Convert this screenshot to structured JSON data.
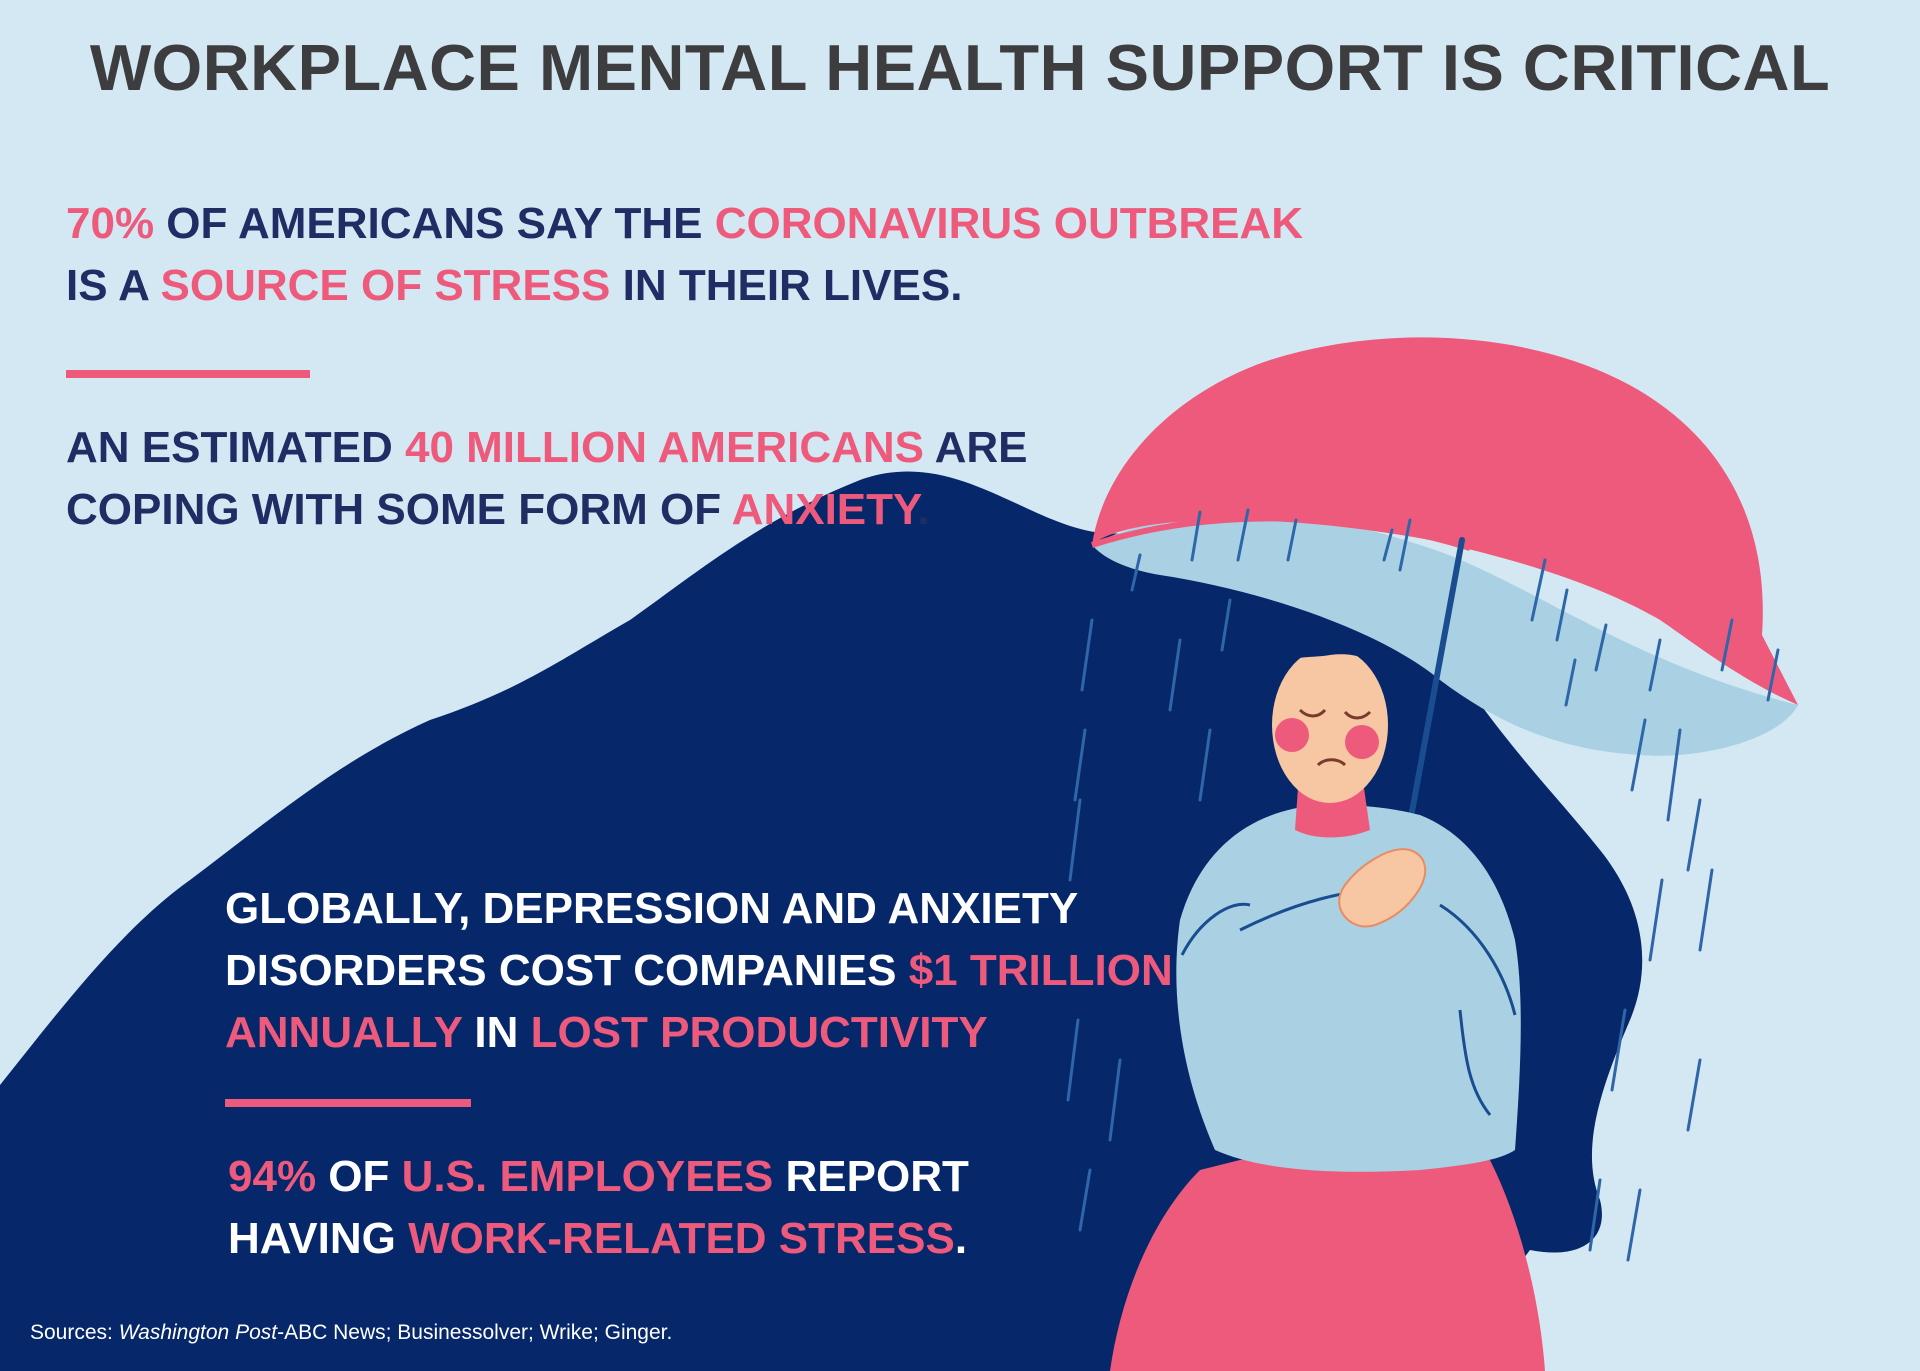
{
  "title": "WORKPLACE MENTAL HEALTH SUPPORT IS CRITICAL",
  "stats": [
    {
      "line1": [
        {
          "text": "70%",
          "highlight": true
        },
        {
          "text": " OF AMERICANS SAY THE ",
          "highlight": false
        },
        {
          "text": "CORONAVIRUS OUTBREAK",
          "highlight": true
        }
      ],
      "line2": [
        {
          "text": "IS A ",
          "highlight": false
        },
        {
          "text": "SOURCE OF STRESS",
          "highlight": true
        },
        {
          "text": " IN THEIR LIVES.",
          "highlight": false
        }
      ]
    },
    {
      "line1": [
        {
          "text": "AN ESTIMATED ",
          "highlight": false
        },
        {
          "text": "40 MILLION AMERICANS",
          "highlight": true
        },
        {
          "text": " ARE",
          "highlight": false
        }
      ],
      "line2": [
        {
          "text": "COPING WITH SOME FORM OF ",
          "highlight": false
        },
        {
          "text": "ANXIETY",
          "highlight": true
        },
        {
          "text": ".",
          "highlight": false
        }
      ]
    },
    {
      "line1": [
        {
          "text": "GLOBALLY, DEPRESSION AND ANXIETY",
          "highlight": false
        }
      ],
      "line2": [
        {
          "text": "DISORDERS COST COMPANIES ",
          "highlight": false
        },
        {
          "text": "$1 TRILLION",
          "highlight": true
        }
      ],
      "line3": [
        {
          "text": "ANNUALLY",
          "highlight": true
        },
        {
          "text": " IN ",
          "highlight": false
        },
        {
          "text": "LOST PRODUCTIVITY",
          "highlight": true
        }
      ]
    },
    {
      "line1": [
        {
          "text": "94%",
          "highlight": true
        },
        {
          "text": " OF ",
          "highlight": false
        },
        {
          "text": "U.S. EMPLOYEES",
          "highlight": true
        },
        {
          "text": " REPORT",
          "highlight": false
        }
      ],
      "line2": [
        {
          "text": "HAVING ",
          "highlight": false
        },
        {
          "text": "WORK-RELATED STRESS",
          "highlight": true
        },
        {
          "text": ".",
          "highlight": false
        }
      ]
    }
  ],
  "sources": {
    "label": "Sources: ",
    "publication": "Washington Post",
    "rest": "-ABC News; Businessolver; Wrike; Ginger."
  },
  "colors": {
    "background": "#d4e8f3",
    "navy": "#06276a",
    "pink": "#ee5a7c",
    "title": "#3d3d3f",
    "dark_text": "#1e2d63",
    "umbrella_underside": "#a9d1e3",
    "sweater": "#a9d1e3",
    "skin": "#f7c6a3"
  },
  "icons": [
    "umbrella-icon",
    "rain-icon",
    "woman-illustration"
  ]
}
